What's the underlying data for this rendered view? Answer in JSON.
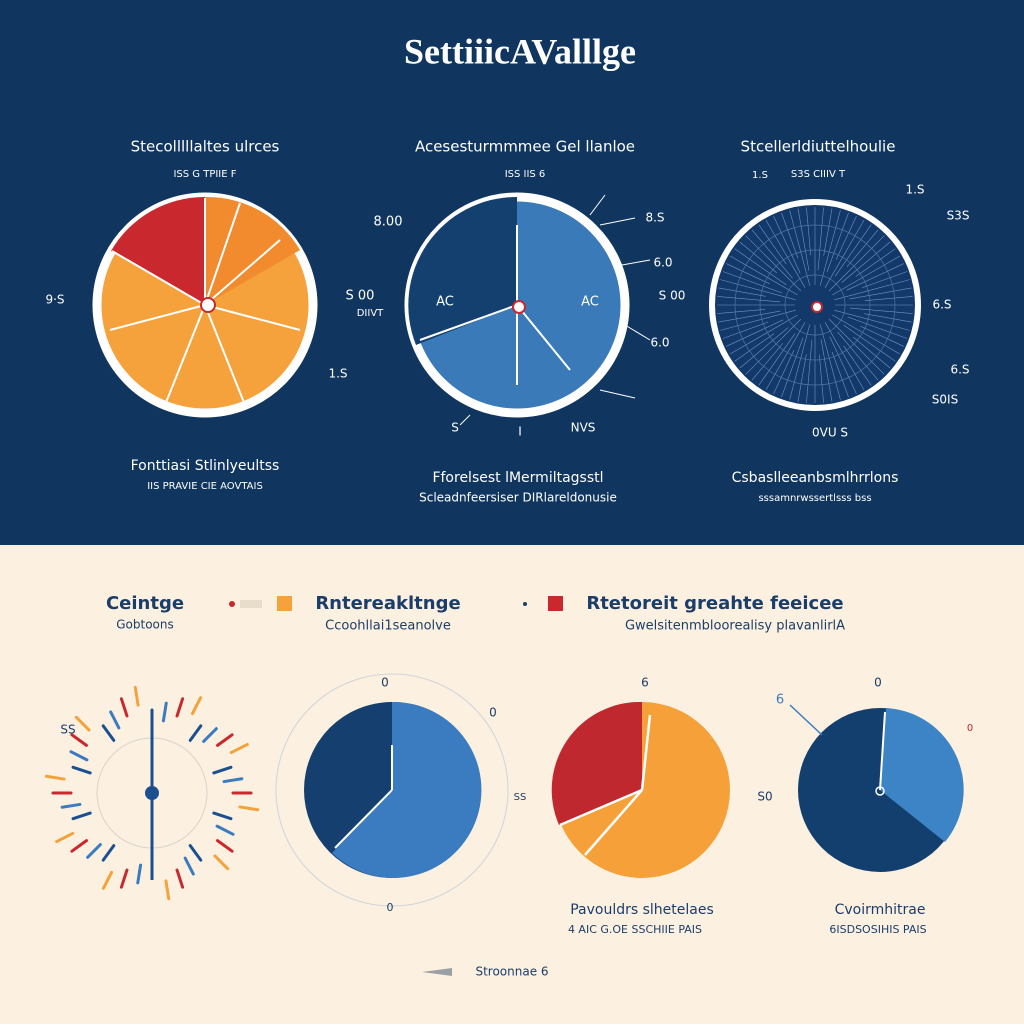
{
  "title": "SettiiicAValllge",
  "panels": [
    {
      "title": "Stecolllllaltes ulrces",
      "subtitle": "ISS G TPIIE  F",
      "labels": [
        "9·S",
        "1.S"
      ],
      "caption": [
        "Fonttiasi Stlinlyeultss",
        "IIS   PRAVIE CIE AOVTAIS"
      ]
    },
    {
      "title": "Acesesturmmmee Gel llanloe",
      "subtitle": "ISS IIS  6",
      "labels": [
        "8.00",
        "S 00",
        "DIIVT",
        "AC",
        "AC",
        "6.0",
        "S 00",
        "6.0",
        "8.S",
        "I",
        "S",
        "NVS"
      ],
      "caption": [
        "Fforelsest lMermiltagsstl",
        "Scleadnfeersiser DIRlareldonusie"
      ]
    },
    {
      "title": "Stcellerldiuttelhoulie",
      "subtitle": "S3S  CIIIV  T",
      "labels": [
        "6.S",
        "S3S",
        "1.S",
        "6.S",
        "1.S",
        "S0IS",
        "0VU  S"
      ],
      "caption": [
        "Csbaslleeanbsmlhrrlons",
        "sssamnrwssertlsss bss"
      ]
    }
  ],
  "legend": [
    {
      "title": "Ceintge",
      "subtitle": "Gobtoons"
    },
    {
      "title": "Rntereakltnge",
      "subtitle": "Ccoohllai1seanolve"
    },
    {
      "title": "Rtetoreit greahte feeicee",
      "subtitle": "Gwelsitenmbloorealisy plavanlirlA"
    }
  ],
  "bottom_labels": [
    "0",
    "0",
    "6",
    "0",
    "6",
    "0",
    "0",
    "S0",
    "SS",
    "SS"
  ],
  "bottom_captions": [
    [
      "Pavouldrs slhetelaes",
      "4  AIC G.OE SSCHIIE PAIS"
    ],
    [
      "Cvoirmhitrae",
      "6ISDSOSIHIS PAIS"
    ]
  ],
  "footer": "Stroonnae 6"
}
